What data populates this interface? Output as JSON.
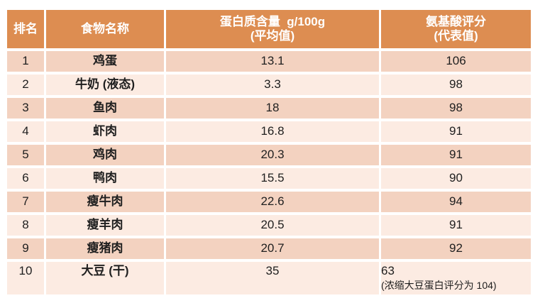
{
  "colors": {
    "header_bg": "#dd8d51",
    "row_odd_bg": "#f3d2c0",
    "row_even_bg": "#fcebe2",
    "body_text": "#1f1f1f",
    "header_text": "#ffffff",
    "page_bg": "#ffffff"
  },
  "header": {
    "rank": "排名",
    "food": "食物名称",
    "protein_line1": "蛋白质含量  g/100g",
    "protein_line2": "(平均值)",
    "score_line1": "氨基酸评分",
    "score_line2": "(代表值)"
  },
  "table": {
    "rows": [
      {
        "rank": "1",
        "food": "鸡蛋",
        "protein": "13.1",
        "score": "106"
      },
      {
        "rank": "2",
        "food": "牛奶 (液态)",
        "protein": "3.3",
        "score": "98"
      },
      {
        "rank": "3",
        "food": "鱼肉",
        "protein": "18",
        "score": "98"
      },
      {
        "rank": "4",
        "food": "虾肉",
        "protein": "16.8",
        "score": "91"
      },
      {
        "rank": "5",
        "food": "鸡肉",
        "protein": "20.3",
        "score": "91"
      },
      {
        "rank": "6",
        "food": "鸭肉",
        "protein": "15.5",
        "score": "90"
      },
      {
        "rank": "7",
        "food": "瘦牛肉",
        "protein": "22.6",
        "score": "94"
      },
      {
        "rank": "8",
        "food": "瘦羊肉",
        "protein": "20.5",
        "score": "91"
      },
      {
        "rank": "9",
        "food": "瘦猪肉",
        "protein": "20.7",
        "score": "92"
      },
      {
        "rank": "10",
        "food": "大豆 (干)",
        "protein": "35",
        "score": "63",
        "note": "(浓缩大豆蛋白评分为 104)"
      }
    ]
  },
  "chart_data": {
    "type": "table",
    "title": "",
    "columns": [
      "排名",
      "食物名称",
      "蛋白质含量 g/100g (平均值)",
      "氨基酸评分 (代表值)"
    ],
    "rows": [
      [
        "1",
        "鸡蛋",
        13.1,
        106
      ],
      [
        "2",
        "牛奶 (液态)",
        3.3,
        98
      ],
      [
        "3",
        "鱼肉",
        18,
        98
      ],
      [
        "4",
        "虾肉",
        16.8,
        91
      ],
      [
        "5",
        "鸡肉",
        20.3,
        91
      ],
      [
        "6",
        "鸭肉",
        15.5,
        90
      ],
      [
        "7",
        "瘦牛肉",
        22.6,
        94
      ],
      [
        "8",
        "瘦羊肉",
        20.5,
        91
      ],
      [
        "9",
        "瘦猪肉",
        20.7,
        92
      ],
      [
        "10",
        "大豆 (干)",
        35,
        "63 (浓缩大豆蛋白评分为 104)"
      ]
    ]
  }
}
